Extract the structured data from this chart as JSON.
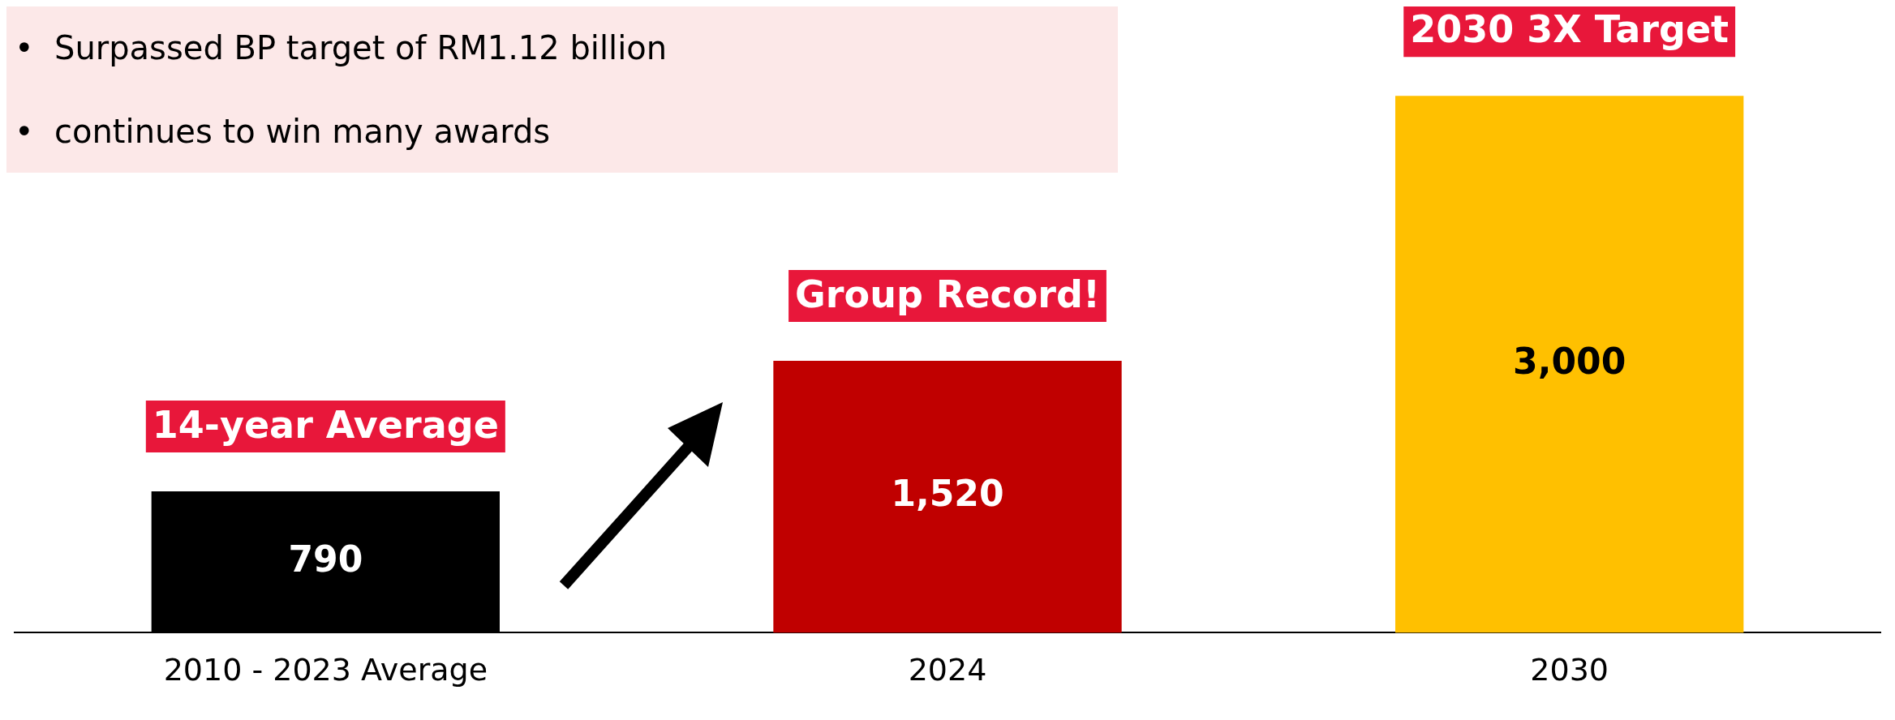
{
  "chart_data": {
    "type": "bar",
    "categories": [
      "2010 - 2023 Average",
      "2024",
      "2030"
    ],
    "values": [
      790,
      1520,
      3000
    ],
    "colors": [
      "#000000",
      "#c00000",
      "#ffc000"
    ],
    "ylim": [
      0,
      3500
    ],
    "tick_labels": "x",
    "grid": false,
    "legend": false,
    "value_labels": [
      "790",
      "1,520",
      "3,000"
    ],
    "annotations": [
      "•  Surpassed BP target of RM1.12 billion",
      "•  continues to win many awards",
      {
        "text": "14-year Average",
        "x": "2010 - 2023 Average",
        "y": 790
      },
      {
        "text": "Group Record!",
        "x": "2024",
        "y": 1520
      },
      {
        "text": "2030 3X Target",
        "x": "2030",
        "y": 3000
      }
    ]
  }
}
